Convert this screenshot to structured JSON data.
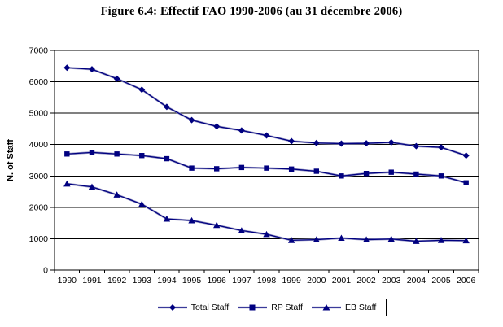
{
  "chart_data": {
    "type": "line",
    "title": "Figure 6.4: Effectif FAO 1990-2006 (au 31 décembre 2006)",
    "x": [
      1990,
      1991,
      1992,
      1993,
      1994,
      1995,
      1996,
      1997,
      1998,
      1999,
      2000,
      2001,
      2002,
      2003,
      2004,
      2005,
      2006
    ],
    "series": [
      {
        "name": "Total Staff",
        "marker": "diamond",
        "values": [
          6450,
          6400,
          6100,
          5750,
          5200,
          4780,
          4580,
          4450,
          4290,
          4110,
          4050,
          4030,
          4040,
          4070,
          3950,
          3910,
          3650
        ]
      },
      {
        "name": "RP Staff",
        "marker": "square",
        "values": [
          3700,
          3750,
          3700,
          3650,
          3550,
          3250,
          3230,
          3270,
          3250,
          3220,
          3150,
          3000,
          3080,
          3120,
          3060,
          3000,
          2780
        ]
      },
      {
        "name": "EB Staff",
        "marker": "triangle",
        "values": [
          2750,
          2650,
          2400,
          2100,
          1630,
          1580,
          1430,
          1260,
          1140,
          950,
          970,
          1020,
          970,
          990,
          920,
          950,
          940
        ]
      }
    ],
    "xlabel": "",
    "ylabel": "N. of Staff",
    "ylim": [
      0,
      7000
    ],
    "ytick_interval": 1000,
    "grid": true,
    "legend_position": "bottom",
    "colors": {
      "series": "#000080",
      "line_halo": "#9e9ec8",
      "grid": "#000000",
      "axis": "#000000",
      "text": "#000000",
      "background": "#ffffff"
    }
  }
}
